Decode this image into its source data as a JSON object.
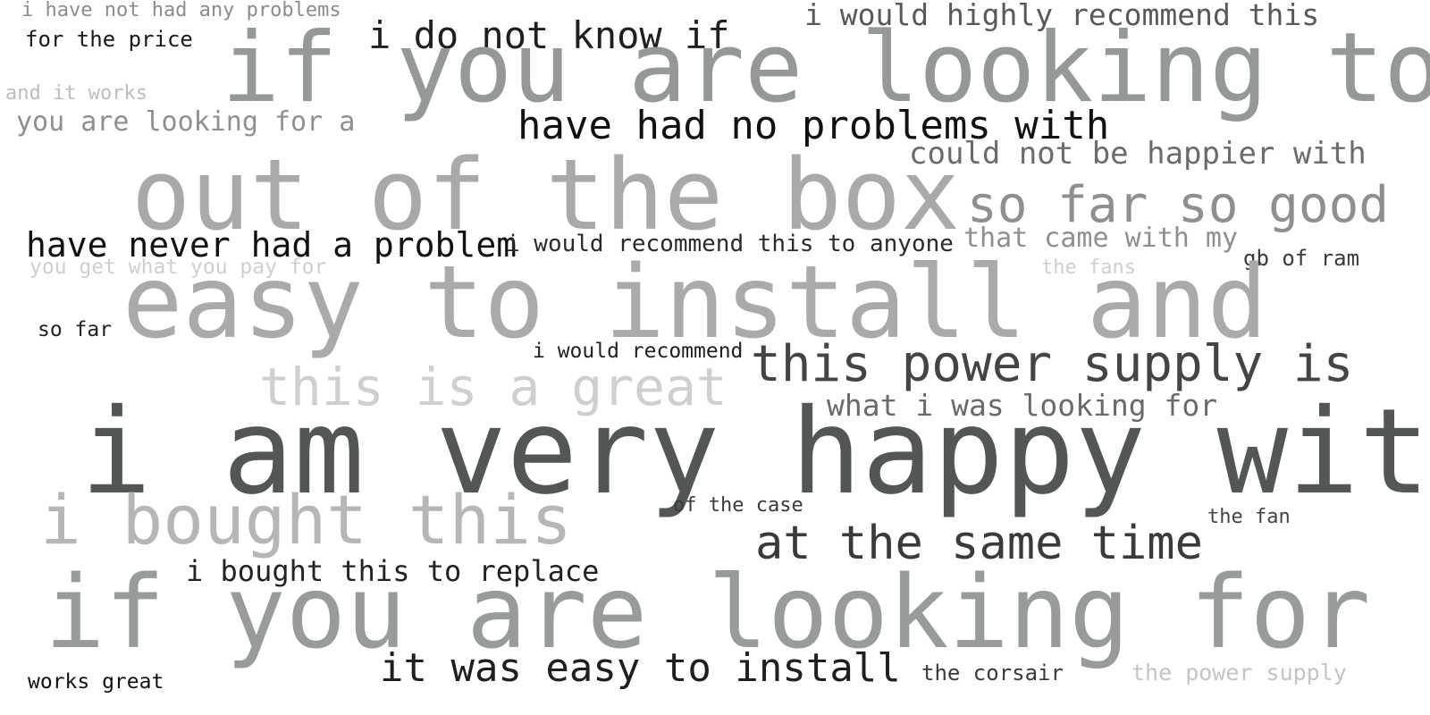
{
  "phrases": [
    {
      "text": "i have not had any problems",
      "color": "#8c8c8c"
    },
    {
      "text": "for the price",
      "color": "#1a1a1a"
    },
    {
      "text": "i do not know if",
      "color": "#1f1f1f"
    },
    {
      "text": "i would highly recommend this",
      "color": "#595959"
    },
    {
      "text": "if you are looking to",
      "color": "#959898"
    },
    {
      "text": "and it works",
      "color": "#bdbdbd"
    },
    {
      "text": "you are looking for a",
      "color": "#8f8f8f"
    },
    {
      "text": "have had no problems with",
      "color": "#111111"
    },
    {
      "text": "could not be happier with",
      "color": "#6b6b6b"
    },
    {
      "text": "out of the box",
      "color": "#a8aaaa"
    },
    {
      "text": "so far so good",
      "color": "#8f8f8f"
    },
    {
      "text": "have never had a problem",
      "color": "#111111"
    },
    {
      "text": "i would recommend this to anyone",
      "color": "#2a2a2a"
    },
    {
      "text": "that came with my",
      "color": "#8f8f8f"
    },
    {
      "text": "gb of ram",
      "color": "#3a3a3a"
    },
    {
      "text": "you get what you pay for",
      "color": "#cfcfcf"
    },
    {
      "text": "the fans",
      "color": "#cfcfcf"
    },
    {
      "text": "easy to install and",
      "color": "#a9abab"
    },
    {
      "text": "so far",
      "color": "#222222"
    },
    {
      "text": "i would recommend",
      "color": "#1f1f1f"
    },
    {
      "text": "this power supply is",
      "color": "#444444"
    },
    {
      "text": "this is a great",
      "color": "#cfcfcf"
    },
    {
      "text": "what i was looking for",
      "color": "#6a6a6a"
    },
    {
      "text": "i am very happy with",
      "color": "#535657"
    },
    {
      "text": "i bought this",
      "color": "#b5b7b7"
    },
    {
      "text": "of the case",
      "color": "#3a3a3a"
    },
    {
      "text": "the fan",
      "color": "#444444"
    },
    {
      "text": "at the same time",
      "color": "#3a3a3a"
    },
    {
      "text": "i bought this to replace",
      "color": "#222222"
    },
    {
      "text": "if you are looking for",
      "color": "#989b9b"
    },
    {
      "text": "works great",
      "color": "#111111"
    },
    {
      "text": "it was easy to install",
      "color": "#1f1f1f"
    },
    {
      "text": "the corsair",
      "color": "#3a3a3a"
    },
    {
      "text": "the power supply",
      "color": "#c4c4c4"
    }
  ]
}
